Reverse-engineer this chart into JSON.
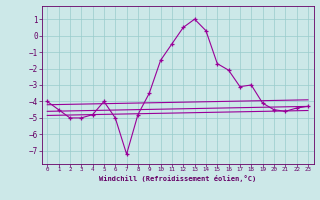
{
  "xlabel": "Windchill (Refroidissement éolien,°C)",
  "xlim": [
    -0.5,
    23.5
  ],
  "ylim": [
    -7.8,
    1.8
  ],
  "yticks": [
    1,
    0,
    -1,
    -2,
    -3,
    -4,
    -5,
    -6,
    -7
  ],
  "xticks": [
    0,
    1,
    2,
    3,
    4,
    5,
    6,
    7,
    8,
    9,
    10,
    11,
    12,
    13,
    14,
    15,
    16,
    17,
    18,
    19,
    20,
    21,
    22,
    23
  ],
  "bg_color": "#cce8e8",
  "grid_color": "#99cccc",
  "line_color": "#990099",
  "line1_x": [
    0,
    1,
    2,
    3,
    4,
    5,
    6,
    7,
    8,
    9,
    10,
    11,
    12,
    13,
    14,
    15,
    16,
    17,
    18,
    19,
    20,
    21,
    22,
    23
  ],
  "line1_y": [
    -4.0,
    -4.5,
    -5.0,
    -5.0,
    -4.8,
    -4.0,
    -5.0,
    -7.2,
    -4.8,
    -3.5,
    -1.5,
    -0.5,
    0.5,
    1.0,
    0.3,
    -1.7,
    -2.1,
    -3.1,
    -3.0,
    -4.1,
    -4.5,
    -4.6,
    -4.4,
    -4.3
  ],
  "line3_x": [
    0,
    23
  ],
  "line3_y": [
    -4.2,
    -3.9
  ],
  "line4_x": [
    0,
    23
  ],
  "line4_y": [
    -4.6,
    -4.3
  ],
  "line5_x": [
    0,
    23
  ],
  "line5_y": [
    -4.85,
    -4.55
  ]
}
